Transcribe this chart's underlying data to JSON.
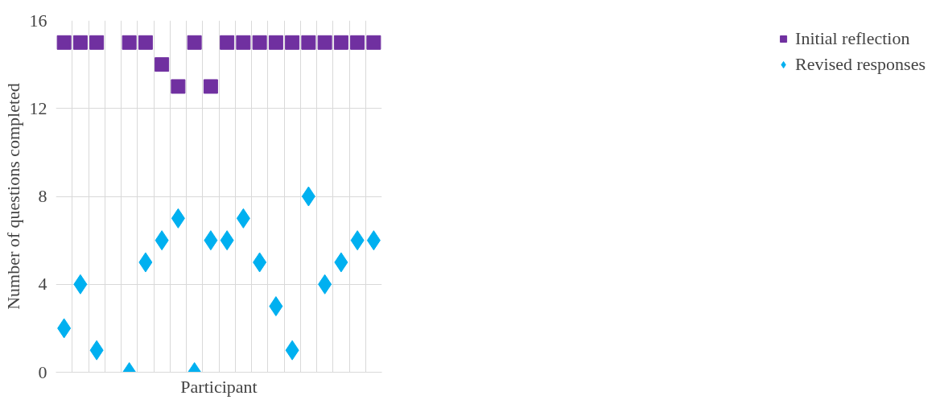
{
  "chart_data": {
    "type": "scatter",
    "xlabel": "Participant",
    "ylabel": "Number of questions completed",
    "categories": [
      null,
      null,
      null,
      null,
      null,
      null,
      null,
      null,
      null,
      null,
      null,
      null,
      null,
      null,
      null,
      null,
      null,
      null,
      null,
      null
    ],
    "series": [
      {
        "name": "Initial reflection",
        "color": "#7030a0",
        "marker": "square",
        "values": [
          15,
          15,
          15,
          null,
          15,
          15,
          14,
          13,
          15,
          13,
          15,
          15,
          15,
          15,
          15,
          15,
          15,
          15,
          15,
          15
        ]
      },
      {
        "name": "Revised responses",
        "color": "#00b0f0",
        "marker": "diamond",
        "values": [
          2,
          4,
          1,
          null,
          0,
          5,
          6,
          7,
          0,
          6,
          6,
          7,
          5,
          3,
          1,
          8,
          4,
          5,
          6,
          6
        ]
      }
    ],
    "ylim": [
      0,
      16
    ],
    "yticks": [
      0,
      4,
      8,
      12,
      16
    ],
    "grid": true,
    "legend": "right",
    "tick_labels": "y"
  }
}
